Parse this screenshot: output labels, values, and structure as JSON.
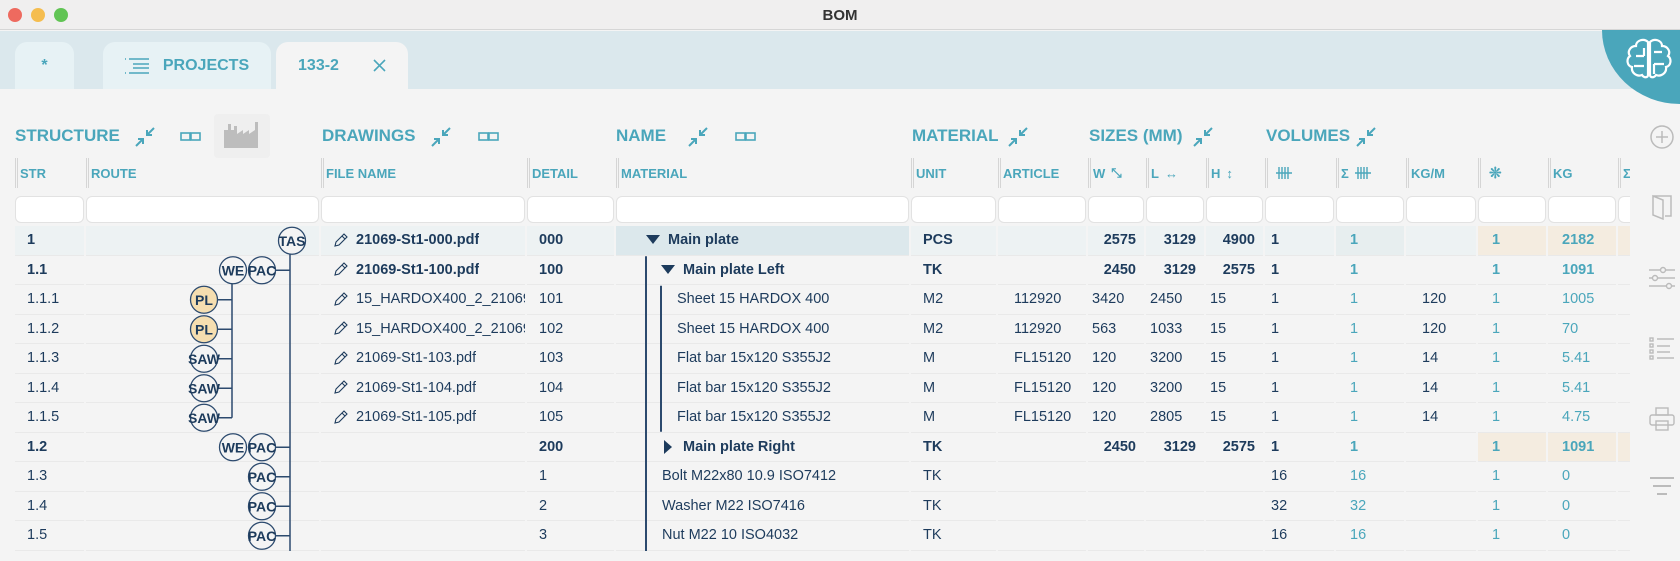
{
  "window": {
    "title": "BOM",
    "controls": {
      "close": "#ee6a5f",
      "minimize": "#f5bd4f",
      "maximize": "#61c454"
    }
  },
  "tabs": [
    {
      "label": "*"
    },
    {
      "label": "PROJECTS",
      "icon": "list-icon"
    },
    {
      "label": "133-2",
      "closable": true,
      "active": true
    }
  ],
  "colors": {
    "accent": "#4aa6bb",
    "text": "#1d3b5c",
    "highlight": "#f4ece0"
  },
  "sections": [
    "STRUCTURE",
    "DRAWINGS",
    "NAME",
    "MATERIAL",
    "SIZES (MM)",
    "VOLUMES"
  ],
  "columns": [
    "STR",
    "ROUTE",
    "FILE NAME",
    "DETAIL",
    "MATERIAL",
    "UNIT",
    "ARTICLE",
    "W",
    "L",
    "H",
    "",
    "Σ",
    "KG/M",
    "",
    "KG",
    "Σ"
  ],
  "rows": [
    {
      "str": "1",
      "route": [
        "TAS"
      ],
      "file": "21069-St1-000.pdf",
      "detail": "000",
      "name": "Main plate",
      "unit": "PCS",
      "article": "",
      "w": "2575",
      "l": "3129",
      "h": "4900",
      "qty": "1",
      "sqty": "1",
      "kgm": "",
      "n": "1",
      "kg": "2182",
      "toggle": "expanded"
    },
    {
      "str": "1.1",
      "route": [
        "WE",
        "PAC"
      ],
      "file": "21069-St1-100.pdf",
      "detail": "100",
      "name": "Main plate Left",
      "unit": "TK",
      "article": "",
      "w": "2450",
      "l": "3129",
      "h": "2575",
      "qty": "1",
      "sqty": "1",
      "kgm": "",
      "n": "1",
      "kg": "1091",
      "toggle": "expanded"
    },
    {
      "str": "1.1.1",
      "route": [
        "PL"
      ],
      "file": "15_HARDOX400_2_21069-St1-101.pdf",
      "detail": "101",
      "name": "Sheet 15 HARDOX 400",
      "unit": "M2",
      "article": "112920",
      "w": "3420",
      "l": "2450",
      "h": "15",
      "qty": "1",
      "sqty": "1",
      "kgm": "120",
      "n": "1",
      "kg": "1005"
    },
    {
      "str": "1.1.2",
      "route": [
        "PL"
      ],
      "file": "15_HARDOX400_2_21069-St1-102.pdf",
      "detail": "102",
      "name": "Sheet 15 HARDOX 400",
      "unit": "M2",
      "article": "112920",
      "w": "563",
      "l": "1033",
      "h": "15",
      "qty": "1",
      "sqty": "1",
      "kgm": "120",
      "n": "1",
      "kg": "70"
    },
    {
      "str": "1.1.3",
      "route": [
        "SAW"
      ],
      "file": "21069-St1-103.pdf",
      "detail": "103",
      "name": "Flat bar 15x120 S355J2",
      "unit": "M",
      "article": "FL15120",
      "w": "120",
      "l": "3200",
      "h": "15",
      "qty": "1",
      "sqty": "1",
      "kgm": "14",
      "n": "1",
      "kg": "5.41"
    },
    {
      "str": "1.1.4",
      "route": [
        "SAW"
      ],
      "file": "21069-St1-104.pdf",
      "detail": "104",
      "name": "Flat bar 15x120 S355J2",
      "unit": "M",
      "article": "FL15120",
      "w": "120",
      "l": "3200",
      "h": "15",
      "qty": "1",
      "sqty": "1",
      "kgm": "14",
      "n": "1",
      "kg": "5.41"
    },
    {
      "str": "1.1.5",
      "route": [
        "SAW"
      ],
      "file": "21069-St1-105.pdf",
      "detail": "105",
      "name": "Flat bar 15x120 S355J2",
      "unit": "M",
      "article": "FL15120",
      "w": "120",
      "l": "2805",
      "h": "15",
      "qty": "1",
      "sqty": "1",
      "kgm": "14",
      "n": "1",
      "kg": "4.75"
    },
    {
      "str": "1.2",
      "route": [
        "WE",
        "PAC"
      ],
      "file": "",
      "detail": "200",
      "name": "Main plate Right",
      "unit": "TK",
      "article": "",
      "w": "2450",
      "l": "3129",
      "h": "2575",
      "qty": "1",
      "sqty": "1",
      "kgm": "",
      "n": "1",
      "kg": "1091",
      "toggle": "collapsed"
    },
    {
      "str": "1.3",
      "route": [
        "PAC"
      ],
      "file": "",
      "detail": "1",
      "name": "Bolt M22x80 10.9 ISO7412",
      "unit": "TK",
      "article": "",
      "w": "",
      "l": "",
      "h": "",
      "qty": "16",
      "sqty": "16",
      "kgm": "",
      "n": "1",
      "kg": "0"
    },
    {
      "str": "1.4",
      "route": [
        "PAC"
      ],
      "file": "",
      "detail": "2",
      "name": "Washer M22 ISO7416",
      "unit": "TK",
      "article": "",
      "w": "",
      "l": "",
      "h": "",
      "qty": "32",
      "sqty": "32",
      "kgm": "",
      "n": "1",
      "kg": "0"
    },
    {
      "str": "1.5",
      "route": [
        "PAC"
      ],
      "file": "",
      "detail": "3",
      "name": "Nut M22 10 ISO4032",
      "unit": "TK",
      "article": "",
      "w": "",
      "l": "",
      "h": "",
      "qty": "16",
      "sqty": "16",
      "kgm": "",
      "n": "1",
      "kg": "0"
    }
  ]
}
